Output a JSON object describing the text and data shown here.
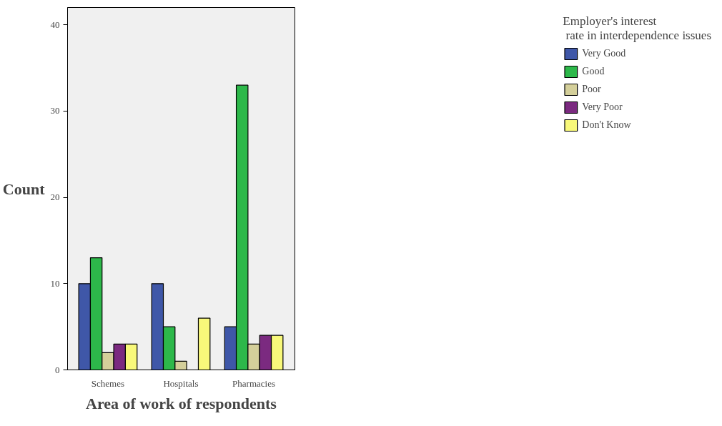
{
  "chart_data": {
    "type": "bar",
    "xlabel": "Area of work of respondents",
    "ylabel": "Count",
    "legend_title": "Employer's interest\n rate in interdependence issues",
    "categories": [
      "Schemes",
      "Hospitals",
      "Pharmacies"
    ],
    "series": [
      {
        "name": "Very Good",
        "color": "#3f57a8",
        "values": [
          10,
          10,
          5
        ]
      },
      {
        "name": "Good",
        "color": "#2db84a",
        "values": [
          13,
          5,
          33
        ]
      },
      {
        "name": "Poor",
        "color": "#d4cf9a",
        "values": [
          2,
          1,
          3
        ]
      },
      {
        "name": "Very Poor",
        "color": "#7b2a80",
        "values": [
          3,
          null,
          4
        ]
      },
      {
        "name": "Don't Know",
        "color": "#f8f87a",
        "values": [
          3,
          6,
          4
        ]
      }
    ],
    "ylim": [
      0,
      42
    ],
    "yticks": [
      0,
      10,
      20,
      30,
      40
    ],
    "grid": false,
    "legend": "right"
  }
}
